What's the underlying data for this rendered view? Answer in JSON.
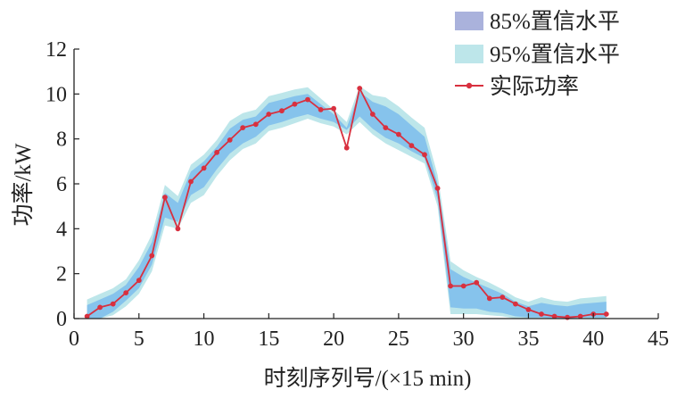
{
  "chart_data": {
    "type": "line",
    "xlabel": "时刻序列号/(×15 min)",
    "ylabel": "功率/kW",
    "xlim": [
      0,
      45
    ],
    "ylim": [
      0,
      12
    ],
    "xticks": [
      0,
      5,
      10,
      15,
      20,
      25,
      30,
      35,
      40,
      45
    ],
    "yticks": [
      0,
      2,
      4,
      6,
      8,
      10,
      12
    ],
    "grid": false,
    "legend_position": "top-right",
    "colors": {
      "band95": "#bde6ea",
      "band85": "#86c3ec",
      "actual": "#d8303f",
      "legend85": "#aab2dc"
    },
    "legend": [
      {
        "label": "85%置信水平",
        "kind": "band85"
      },
      {
        "label": "95%置信水平",
        "kind": "band95"
      },
      {
        "label": "实际功率",
        "kind": "actual"
      }
    ],
    "series": [
      {
        "name": "实际功率",
        "x": [
          1,
          2,
          3,
          4,
          5,
          6,
          7,
          8,
          9,
          10,
          11,
          12,
          13,
          14,
          15,
          16,
          17,
          18,
          19,
          20,
          21,
          22,
          23,
          24,
          25,
          26,
          27,
          28,
          29,
          30,
          31,
          32,
          33,
          34,
          35,
          36,
          37,
          38,
          39,
          40,
          41
        ],
        "values": [
          0.1,
          0.5,
          0.65,
          1.15,
          1.7,
          2.8,
          5.4,
          4.0,
          6.1,
          6.7,
          7.4,
          7.95,
          8.5,
          8.65,
          9.1,
          9.25,
          9.55,
          9.75,
          9.3,
          9.35,
          7.6,
          10.25,
          9.1,
          8.5,
          8.2,
          7.7,
          7.3,
          5.8,
          1.45,
          1.45,
          1.6,
          0.9,
          0.95,
          0.65,
          0.4,
          0.2,
          0.1,
          0.05,
          0.1,
          0.2,
          0.2
        ]
      },
      {
        "name": "95%置信水平",
        "x": [
          1,
          2,
          3,
          4,
          5,
          6,
          7,
          8,
          9,
          10,
          11,
          12,
          13,
          14,
          15,
          16,
          17,
          18,
          19,
          20,
          21,
          22,
          23,
          24,
          25,
          26,
          27,
          28,
          29,
          30,
          31,
          32,
          33,
          34,
          35,
          36,
          37,
          38,
          39,
          40,
          41
        ],
        "lower": [
          0,
          0,
          0.15,
          0.55,
          1.1,
          2.1,
          4.15,
          4.0,
          5.15,
          5.5,
          6.35,
          7.05,
          7.55,
          7.8,
          8.35,
          8.5,
          8.7,
          8.9,
          8.7,
          8.55,
          8.2,
          8.75,
          8.2,
          7.8,
          7.5,
          7.2,
          6.9,
          5.0,
          0.2,
          0.2,
          0.2,
          0.15,
          0.1,
          0,
          0,
          0,
          0,
          0,
          0,
          0,
          0
        ],
        "upper": [
          0.85,
          1.1,
          1.35,
          1.75,
          2.6,
          3.75,
          5.95,
          5.45,
          6.85,
          7.3,
          7.95,
          8.8,
          9.15,
          9.3,
          9.9,
          10.05,
          10.2,
          10.3,
          9.8,
          9.3,
          8.75,
          10.35,
          9.95,
          9.85,
          9.45,
          8.95,
          8.5,
          6.4,
          2.55,
          2.15,
          1.85,
          1.6,
          1.3,
          0.95,
          0.75,
          0.95,
          0.8,
          0.75,
          0.9,
          0.95,
          1.0
        ]
      },
      {
        "name": "85%置信水平",
        "x": [
          1,
          2,
          3,
          4,
          5,
          6,
          7,
          8,
          9,
          10,
          11,
          12,
          13,
          14,
          15,
          16,
          17,
          18,
          19,
          20,
          21,
          22,
          23,
          24,
          25,
          26,
          27,
          28,
          29,
          30,
          31,
          32,
          33,
          34,
          35,
          36,
          37,
          38,
          39,
          40,
          41
        ],
        "lower": [
          0,
          0,
          0.3,
          0.8,
          1.35,
          2.4,
          4.5,
          4.3,
          5.5,
          5.85,
          6.65,
          7.35,
          7.8,
          8.1,
          8.6,
          8.75,
          8.95,
          9.1,
          8.9,
          8.75,
          8.4,
          9.0,
          8.45,
          8.05,
          7.8,
          7.45,
          7.15,
          5.3,
          0.5,
          0.45,
          0.45,
          0.3,
          0.25,
          0.1,
          0.05,
          0.05,
          0,
          0,
          0.05,
          0.05,
          0.05
        ],
        "upper": [
          0.6,
          0.85,
          1.1,
          1.5,
          2.3,
          3.4,
          5.6,
          5.15,
          6.55,
          7.0,
          7.65,
          8.45,
          8.85,
          9.0,
          9.6,
          9.75,
          9.9,
          10.0,
          9.55,
          9.1,
          8.5,
          10.1,
          9.65,
          9.45,
          9.1,
          8.6,
          8.1,
          6.0,
          2.2,
          1.85,
          1.6,
          1.35,
          1.1,
          0.75,
          0.55,
          0.7,
          0.6,
          0.55,
          0.65,
          0.7,
          0.75
        ]
      }
    ]
  }
}
